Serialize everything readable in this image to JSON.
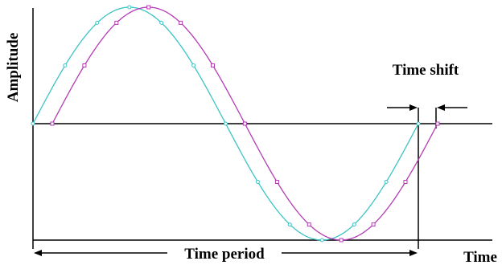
{
  "labels": {
    "y_axis": "Amplitude",
    "x_axis": "Time",
    "time_shift": "Time shift",
    "time_period": "Time period"
  },
  "colors": {
    "reference_wave": "#3cc4c4",
    "shifted_wave": "#b43cb4",
    "axes": "#000000"
  },
  "waves": {
    "reference": {
      "name": "",
      "marker": "circle",
      "phase_shift_fraction": 0
    },
    "shifted": {
      "name": "",
      "marker": "square",
      "phase_shift_fraction": 0.05
    }
  }
}
